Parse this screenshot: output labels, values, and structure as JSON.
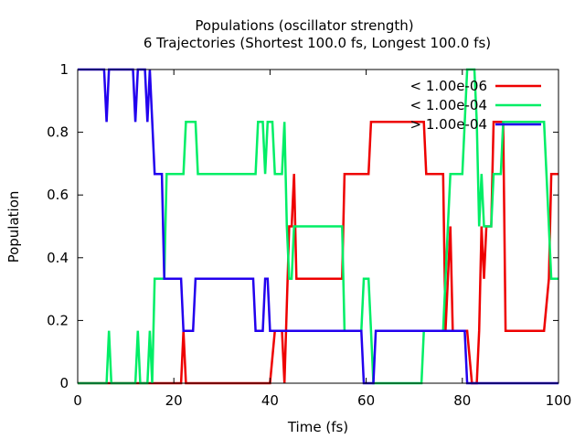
{
  "chart_data": {
    "type": "line",
    "title": "Populations (oscillator strength)",
    "subtitle": "6 Trajectories (Shortest 100.0 fs, Longest 100.0 fs)",
    "xlabel": "Time (fs)",
    "ylabel": "Population",
    "xlim": [
      0,
      100
    ],
    "ylim": [
      0,
      1
    ],
    "x_ticks": [
      "0",
      "20",
      "40",
      "60",
      "80",
      "100"
    ],
    "y_ticks": [
      "0",
      "0.2",
      "0.4",
      "0.6",
      "0.8",
      "1"
    ],
    "legend_position": "top-right",
    "grid": false,
    "series": [
      {
        "name": "< 1.00e-06",
        "color": "#ee0000",
        "points": [
          [
            0,
            0
          ],
          [
            21.5,
            0
          ],
          [
            22,
            0.167
          ],
          [
            22.5,
            0
          ],
          [
            40,
            0
          ],
          [
            41,
            0.167
          ],
          [
            42.5,
            0.167
          ],
          [
            43,
            0
          ],
          [
            44,
            0.5
          ],
          [
            44.5,
            0.5
          ],
          [
            45,
            0.667
          ],
          [
            45.5,
            0.333
          ],
          [
            55,
            0.333
          ],
          [
            55.5,
            0.667
          ],
          [
            60.5,
            0.667
          ],
          [
            61,
            0.833
          ],
          [
            72,
            0.833
          ],
          [
            72.5,
            0.667
          ],
          [
            76,
            0.667
          ],
          [
            76.5,
            0.167
          ],
          [
            77,
            0.333
          ],
          [
            77.5,
            0.5
          ],
          [
            78,
            0.167
          ],
          [
            81,
            0.167
          ],
          [
            82,
            0
          ],
          [
            83,
            0
          ],
          [
            83.5,
            0.167
          ],
          [
            84,
            0.5
          ],
          [
            84.5,
            0.333
          ],
          [
            85,
            0.5
          ],
          [
            86,
            0.5
          ],
          [
            86.5,
            0.833
          ],
          [
            88.5,
            0.833
          ],
          [
            89,
            0.167
          ],
          [
            97,
            0.167
          ],
          [
            98,
            0.333
          ],
          [
            98.5,
            0.667
          ],
          [
            100,
            0.667
          ]
        ]
      },
      {
        "name": "< 1.00e-04",
        "color": "#00ee66",
        "points": [
          [
            0,
            0
          ],
          [
            6,
            0
          ],
          [
            6.5,
            0.167
          ],
          [
            7,
            0
          ],
          [
            12,
            0
          ],
          [
            12.5,
            0.167
          ],
          [
            13,
            0
          ],
          [
            14.5,
            0
          ],
          [
            15,
            0.167
          ],
          [
            15.5,
            0
          ],
          [
            16,
            0.333
          ],
          [
            18,
            0.333
          ],
          [
            18.5,
            0.667
          ],
          [
            22,
            0.667
          ],
          [
            22.5,
            0.833
          ],
          [
            24.5,
            0.833
          ],
          [
            25,
            0.667
          ],
          [
            37,
            0.667
          ],
          [
            37.5,
            0.833
          ],
          [
            38.5,
            0.833
          ],
          [
            39,
            0.667
          ],
          [
            39.5,
            0.833
          ],
          [
            40.5,
            0.833
          ],
          [
            41,
            0.667
          ],
          [
            42.5,
            0.667
          ],
          [
            43,
            0.833
          ],
          [
            43.5,
            0.5
          ],
          [
            44,
            0.333
          ],
          [
            44.5,
            0.333
          ],
          [
            45,
            0.5
          ],
          [
            55,
            0.5
          ],
          [
            55.5,
            0.167
          ],
          [
            59,
            0.167
          ],
          [
            59.5,
            0.333
          ],
          [
            60.5,
            0.333
          ],
          [
            61,
            0.167
          ],
          [
            61.5,
            0
          ],
          [
            71.5,
            0
          ],
          [
            72,
            0.167
          ],
          [
            76,
            0.167
          ],
          [
            76.5,
            0.333
          ],
          [
            77,
            0.5
          ],
          [
            77.5,
            0.667
          ],
          [
            80,
            0.667
          ],
          [
            81,
            1
          ],
          [
            82.5,
            1
          ],
          [
            83,
            0.833
          ],
          [
            83.5,
            0.5
          ],
          [
            84,
            0.667
          ],
          [
            84.5,
            0.5
          ],
          [
            86,
            0.5
          ],
          [
            86.5,
            0.667
          ],
          [
            88,
            0.667
          ],
          [
            88.5,
            0.833
          ],
          [
            97,
            0.833
          ],
          [
            98,
            0.5
          ],
          [
            98.5,
            0.333
          ],
          [
            100,
            0.333
          ]
        ]
      },
      {
        "name": "> 1.00e-04",
        "color": "#2200ee",
        "points": [
          [
            0,
            1
          ],
          [
            5.5,
            1
          ],
          [
            6,
            0.833
          ],
          [
            6.5,
            1
          ],
          [
            11.5,
            1
          ],
          [
            12,
            0.833
          ],
          [
            12.5,
            1
          ],
          [
            14,
            1
          ],
          [
            14.5,
            0.833
          ],
          [
            15,
            1
          ],
          [
            16,
            0.667
          ],
          [
            17.5,
            0.667
          ],
          [
            18,
            0.333
          ],
          [
            21.5,
            0.333
          ],
          [
            22,
            0.167
          ],
          [
            24,
            0.167
          ],
          [
            24.5,
            0.333
          ],
          [
            36.5,
            0.333
          ],
          [
            37,
            0.167
          ],
          [
            38.5,
            0.167
          ],
          [
            39,
            0.333
          ],
          [
            39.5,
            0.333
          ],
          [
            40,
            0.167
          ],
          [
            59,
            0.167
          ],
          [
            59.5,
            0
          ],
          [
            61.5,
            0
          ],
          [
            62,
            0.167
          ],
          [
            80.5,
            0.167
          ],
          [
            81,
            0
          ],
          [
            100,
            0
          ]
        ]
      }
    ]
  }
}
